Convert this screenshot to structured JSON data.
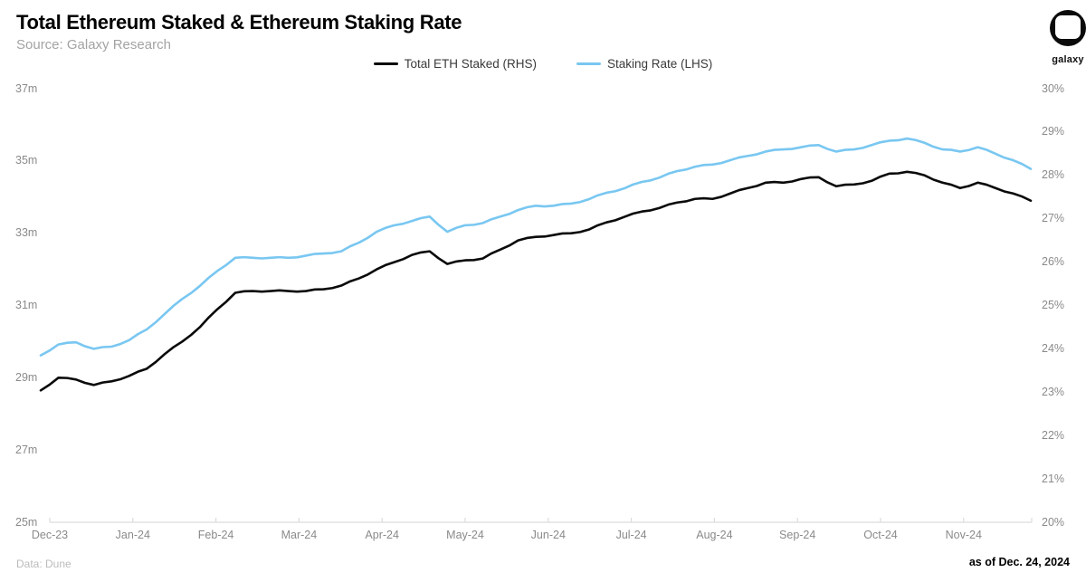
{
  "header": {
    "title": "Total Ethereum Staked & Ethereum Staking Rate",
    "source": "Source: Galaxy Research",
    "logo_text": "galaxy"
  },
  "legend": [
    {
      "label": "Total ETH Staked (RHS)",
      "color": "#0a0a0a"
    },
    {
      "label": "Staking Rate (LHS)",
      "color": "#79c7f1"
    }
  ],
  "footer": {
    "left": "Data: Dune",
    "right": "as of Dec. 24, 2024"
  },
  "chart_data": {
    "type": "line",
    "title": "Total Ethereum Staked & Ethereum Staking Rate",
    "grid": false,
    "legend_position": "top-center",
    "x_labels": [
      "Dec-23",
      "Jan-24",
      "Feb-24",
      "Mar-24",
      "Apr-24",
      "May-24",
      "Jun-24",
      "Jul-24",
      "Aug-24",
      "Sep-24",
      "Oct-24",
      "Nov-24"
    ],
    "left_axis": {
      "min": 25,
      "max": 37,
      "tick_values": [
        37,
        35,
        33,
        31,
        29,
        27,
        25
      ],
      "tick_labels": [
        "37m",
        "35m",
        "33m",
        "31m",
        "29m",
        "27m",
        "25m"
      ]
    },
    "right_axis": {
      "min": 20,
      "max": 30,
      "tick_values": [
        30,
        29,
        28,
        27,
        26,
        25,
        24,
        23,
        22,
        21,
        20
      ],
      "tick_labels": [
        "30%",
        "29%",
        "28%",
        "27%",
        "26%",
        "25%",
        "24%",
        "23%",
        "22%",
        "21%",
        "20%"
      ]
    },
    "series": [
      {
        "name": "Staking Rate (LHS)",
        "axis": "right",
        "unit": "%",
        "color": "#79c7f1",
        "values": [
          23.85,
          24.1,
          24.15,
          24.0,
          24.05,
          24.2,
          24.45,
          24.8,
          25.15,
          25.45,
          25.8,
          26.1,
          26.1,
          26.1,
          26.1,
          26.15,
          26.2,
          26.25,
          26.45,
          26.7,
          26.85,
          26.95,
          27.05,
          26.7,
          26.85,
          26.9,
          27.05,
          27.2,
          27.3,
          27.3,
          27.35,
          27.45,
          27.6,
          27.7,
          27.85,
          27.95,
          28.1,
          28.2,
          28.25,
          28.35,
          28.45,
          28.55,
          28.6,
          28.65,
          28.7,
          28.55,
          28.6,
          28.7,
          28.8,
          28.85,
          28.75,
          28.6,
          28.55,
          28.65,
          28.5,
          28.35,
          28.15
        ]
      },
      {
        "name": "Total ETH Staked (RHS)",
        "axis": "left",
        "unit": "m ETH",
        "color": "#0a0a0a",
        "values": [
          28.65,
          29.0,
          28.95,
          28.8,
          28.9,
          29.05,
          29.25,
          29.65,
          30.0,
          30.4,
          30.9,
          31.35,
          31.4,
          31.4,
          31.4,
          31.4,
          31.45,
          31.55,
          31.75,
          32.0,
          32.2,
          32.4,
          32.5,
          32.15,
          32.25,
          32.3,
          32.55,
          32.8,
          32.9,
          32.95,
          33.0,
          33.1,
          33.3,
          33.45,
          33.6,
          33.7,
          33.85,
          33.95,
          33.95,
          34.1,
          34.25,
          34.4,
          34.4,
          34.5,
          34.55,
          34.3,
          34.35,
          34.45,
          34.65,
          34.7,
          34.6,
          34.4,
          34.25,
          34.4,
          34.25,
          34.1,
          33.9
        ]
      }
    ]
  }
}
